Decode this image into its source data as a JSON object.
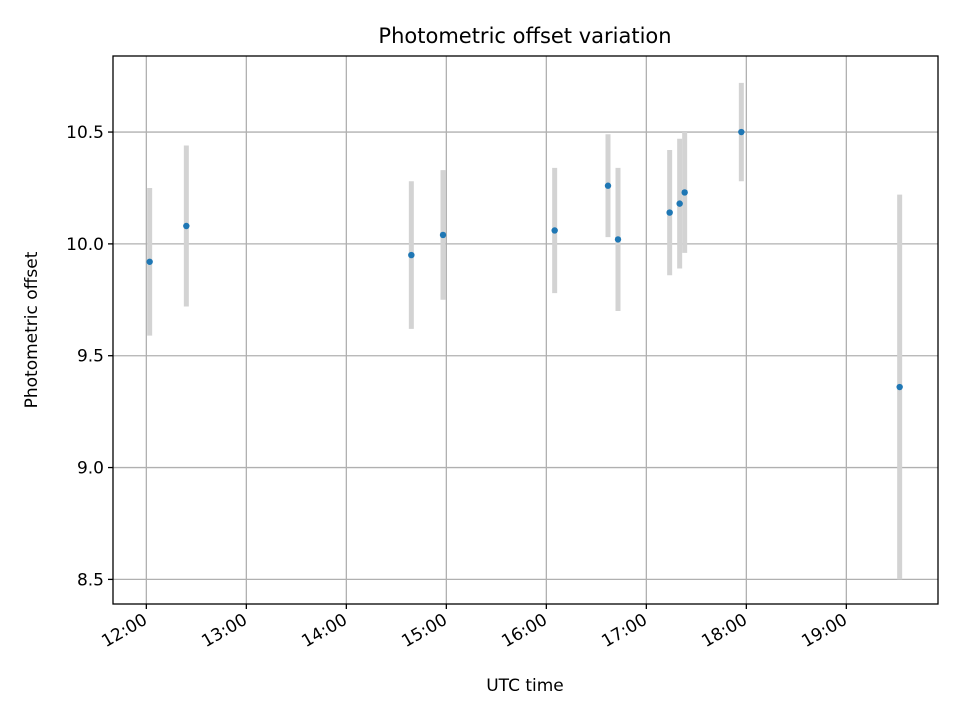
{
  "chart_data": {
    "type": "scatter",
    "title": "Photometric offset variation",
    "xlabel": "UTC time",
    "ylabel": "Photometric offset",
    "xlim": [
      "11:40",
      "19:55"
    ],
    "ylim": [
      8.39,
      10.84
    ],
    "x_ticks": [
      "12:00",
      "13:00",
      "14:00",
      "15:00",
      "16:00",
      "17:00",
      "18:00",
      "19:00"
    ],
    "y_ticks": [
      "8.5",
      "9.0",
      "9.5",
      "10.0",
      "10.5"
    ],
    "grid": true,
    "colors": {
      "points": "#1f77b4",
      "errorbars": "#d3d3d3",
      "grid": "#b0b0b0"
    },
    "series": [
      {
        "x": [
          "12:02",
          "12:24",
          "14:39",
          "14:58",
          "16:05",
          "16:37",
          "16:43",
          "17:14",
          "17:20",
          "17:23",
          "17:57",
          "19:32"
        ],
        "y": [
          9.92,
          10.08,
          9.95,
          10.04,
          10.06,
          10.26,
          10.02,
          10.14,
          10.18,
          10.23,
          10.5,
          9.36
        ],
        "yerr": [
          0.33,
          0.36,
          0.33,
          0.29,
          0.28,
          0.23,
          0.32,
          0.28,
          0.29,
          0.27,
          0.22,
          0.86
        ]
      }
    ]
  }
}
